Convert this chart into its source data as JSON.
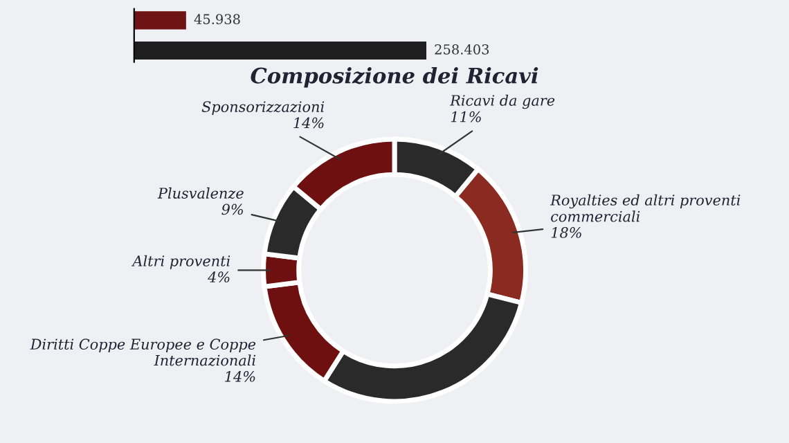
{
  "chart_data": [
    {
      "type": "bar",
      "orientation": "horizontal",
      "categories": [
        null,
        null
      ],
      "values": [
        45.938,
        258.403
      ],
      "colors": [
        "#6e1414",
        "#1e1e1e"
      ],
      "data_labels": true,
      "tick_labels": false
    },
    {
      "type": "donut",
      "title": "Composizione dei Ricavi",
      "categories": [
        "Ricavi da gare",
        "Royalties ed altri proventi commerciali",
        null,
        "Diritti Coppe Europee e Coppe Internazionali",
        "Altri proventi",
        "Plusvalenze",
        "Sponsorizzazioni"
      ],
      "values": [
        11,
        18,
        30,
        14,
        4,
        9,
        14
      ],
      "value_labels": [
        "11%",
        "18%",
        null,
        "14%",
        "4%",
        "9%",
        "14%"
      ],
      "colors": [
        "#2a2a2a",
        "#8a2a20",
        "#2a2a2a",
        "#6e1010",
        "#6e1010",
        "#2a2a2a",
        "#6e1010"
      ]
    }
  ]
}
